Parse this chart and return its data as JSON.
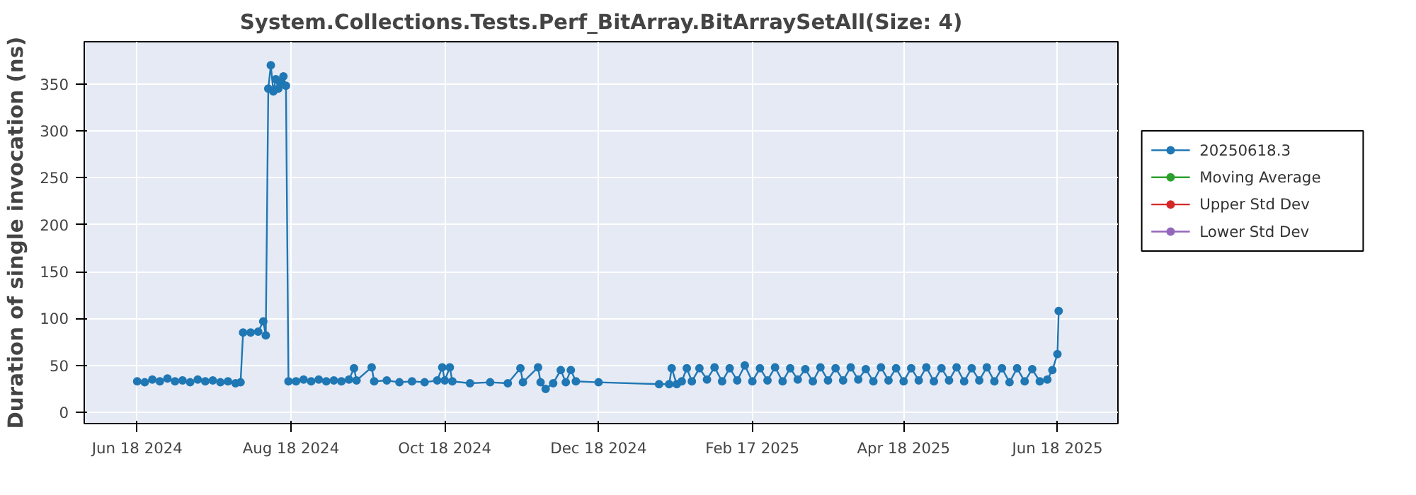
{
  "chart_data": {
    "type": "line",
    "title": "System.Collections.Tests.Perf_BitArray.BitArraySetAll(Size: 4)",
    "ylabel": "Duration of single invocation (ns)",
    "xlim": [
      "2024-05-28",
      "2025-07-12"
    ],
    "ylim": [
      -12,
      395
    ],
    "xticks": [
      {
        "value": "2024-06-18",
        "label": "Jun 18 2024"
      },
      {
        "value": "2024-08-18",
        "label": "Aug 18 2024"
      },
      {
        "value": "2024-10-18",
        "label": "Oct 18 2024"
      },
      {
        "value": "2024-12-18",
        "label": "Dec 18 2024"
      },
      {
        "value": "2025-02-17",
        "label": "Feb 17 2025"
      },
      {
        "value": "2025-04-18",
        "label": "Apr 18 2025"
      },
      {
        "value": "2025-06-18",
        "label": "Jun 18 2025"
      }
    ],
    "yticks": [
      0,
      50,
      100,
      150,
      200,
      250,
      300,
      350
    ],
    "grid": true,
    "legend": "right",
    "marker": "circle",
    "line_style": "solid",
    "series": [
      {
        "name": "20250618.3",
        "color": "#1f77b4",
        "x": [
          "2024-06-18",
          "2024-06-21",
          "2024-06-24",
          "2024-06-27",
          "2024-06-30",
          "2024-07-03",
          "2024-07-06",
          "2024-07-09",
          "2024-07-12",
          "2024-07-15",
          "2024-07-18",
          "2024-07-21",
          "2024-07-24",
          "2024-07-27",
          "2024-07-29",
          "2024-07-30",
          "2024-08-02",
          "2024-08-05",
          "2024-08-07",
          "2024-08-08",
          "2024-08-09",
          "2024-08-10",
          "2024-08-11",
          "2024-08-12",
          "2024-08-13",
          "2024-08-14",
          "2024-08-15",
          "2024-08-16",
          "2024-08-17",
          "2024-08-20",
          "2024-08-23",
          "2024-08-26",
          "2024-08-29",
          "2024-09-01",
          "2024-09-04",
          "2024-09-07",
          "2024-09-10",
          "2024-09-12",
          "2024-09-13",
          "2024-09-19",
          "2024-09-20",
          "2024-09-25",
          "2024-09-30",
          "2024-10-05",
          "2024-10-10",
          "2024-10-15",
          "2024-10-17",
          "2024-10-18",
          "2024-10-20",
          "2024-10-21",
          "2024-10-28",
          "2024-11-05",
          "2024-11-12",
          "2024-11-17",
          "2024-11-18",
          "2024-11-24",
          "2024-11-25",
          "2024-11-27",
          "2024-11-30",
          "2024-12-03",
          "2024-12-05",
          "2024-12-07",
          "2024-12-09",
          "2024-12-18",
          "2025-01-11",
          "2025-01-15",
          "2025-01-16",
          "2025-01-18",
          "2025-01-20",
          "2025-01-22",
          "2025-01-24",
          "2025-01-27",
          "2025-01-30",
          "2025-02-02",
          "2025-02-05",
          "2025-02-08",
          "2025-02-11",
          "2025-02-14",
          "2025-02-17",
          "2025-02-20",
          "2025-02-23",
          "2025-02-26",
          "2025-03-01",
          "2025-03-04",
          "2025-03-07",
          "2025-03-10",
          "2025-03-13",
          "2025-03-16",
          "2025-03-19",
          "2025-03-22",
          "2025-03-25",
          "2025-03-28",
          "2025-03-31",
          "2025-04-03",
          "2025-04-06",
          "2025-04-09",
          "2025-04-12",
          "2025-04-15",
          "2025-04-18",
          "2025-04-21",
          "2025-04-24",
          "2025-04-27",
          "2025-04-30",
          "2025-05-03",
          "2025-05-06",
          "2025-05-09",
          "2025-05-12",
          "2025-05-15",
          "2025-05-18",
          "2025-05-21",
          "2025-05-24",
          "2025-05-27",
          "2025-05-30",
          "2025-06-02",
          "2025-06-05",
          "2025-06-08",
          "2025-06-11",
          "2025-06-14",
          "2025-06-16",
          "2025-06-18",
          "2025-06-18T12:00"
        ],
        "values": [
          33,
          32,
          35,
          33,
          36,
          33,
          34,
          32,
          35,
          33,
          34,
          32,
          33,
          31,
          32,
          85,
          85,
          86,
          97,
          82,
          345,
          370,
          342,
          355,
          345,
          352,
          358,
          348,
          33,
          33,
          35,
          33,
          35,
          33,
          34,
          33,
          35,
          47,
          34,
          48,
          33,
          34,
          32,
          33,
          32,
          34,
          48,
          34,
          48,
          33,
          31,
          32,
          31,
          47,
          32,
          48,
          32,
          25,
          31,
          45,
          32,
          45,
          33,
          32,
          30,
          30,
          47,
          30,
          33,
          47,
          33,
          47,
          35,
          48,
          33,
          47,
          34,
          50,
          33,
          47,
          34,
          48,
          33,
          47,
          35,
          46,
          33,
          48,
          34,
          47,
          34,
          48,
          35,
          46,
          33,
          48,
          34,
          47,
          33,
          47,
          34,
          48,
          33,
          47,
          34,
          48,
          33,
          47,
          34,
          48,
          33,
          47,
          32,
          47,
          33,
          46,
          33,
          35,
          45,
          62,
          108
        ]
      },
      {
        "name": "Moving Average",
        "color": "#2ca02c"
      },
      {
        "name": "Upper Std Dev",
        "color": "#d62728"
      },
      {
        "name": "Lower Std Dev",
        "color": "#9467bd"
      }
    ]
  }
}
